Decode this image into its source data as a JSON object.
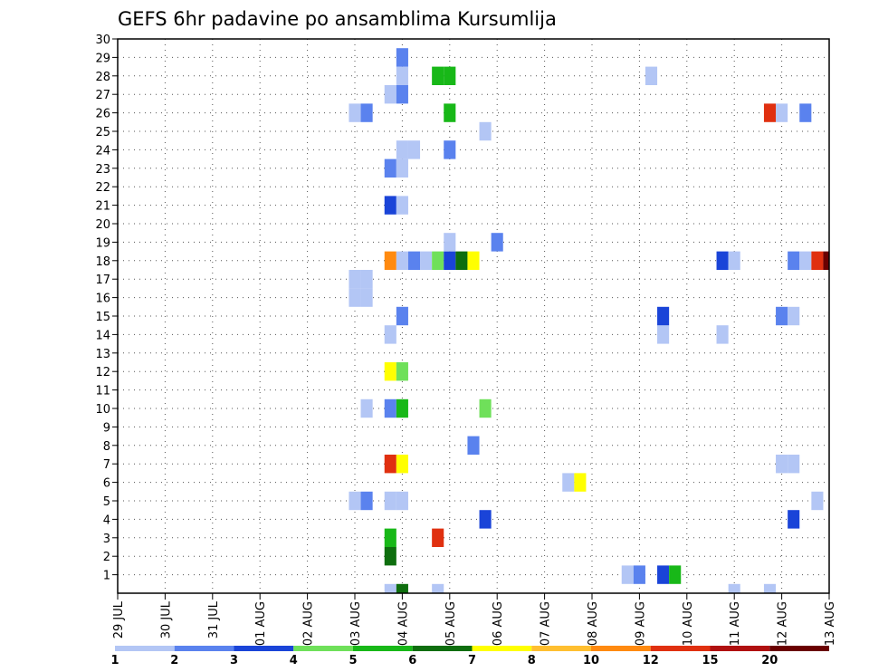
{
  "chart_data": {
    "type": "heatmap",
    "title": "GEFS 6hr padavine po ansamblima Kursumlija",
    "xlabel": "",
    "ylabel": "",
    "x_tick_labels": [
      "29 JUL",
      "30 JUL",
      "31 JUL",
      "01 AUG",
      "02 AUG",
      "03 AUG",
      "04 AUG",
      "05 AUG",
      "06 AUG",
      "07 AUG",
      "08 AUG",
      "09 AUG",
      "10 AUG",
      "11 AUG",
      "12 AUG",
      "13 AUG"
    ],
    "y_tick_labels": [
      "1",
      "2",
      "3",
      "4",
      "5",
      "6",
      "7",
      "8",
      "9",
      "10",
      "11",
      "12",
      "13",
      "14",
      "15",
      "16",
      "17",
      "18",
      "19",
      "20",
      "21",
      "22",
      "23",
      "24",
      "25",
      "26",
      "27",
      "28",
      "29",
      "30"
    ],
    "xlim": [
      0,
      60
    ],
    "ylim": [
      0,
      30
    ],
    "grid": true,
    "colorbar": {
      "placement": "bottom",
      "labels": [
        "1",
        "2",
        "3",
        "4",
        "5",
        "6",
        "7",
        "8",
        "10",
        "12",
        "15",
        "20"
      ],
      "colors": [
        "#b3c6f5",
        "#5a82ee",
        "#1a44d8",
        "#6fe05a",
        "#18b818",
        "#0e6e0e",
        "#ffff00",
        "#ffbf30",
        "#ff8a10",
        "#e03010",
        "#b01010",
        "#6a0000"
      ]
    },
    "cells": [
      {
        "member": 1,
        "step": 43,
        "value": 1.5
      },
      {
        "member": 1,
        "step": 44,
        "value": 2.5
      },
      {
        "member": 1,
        "step": 46,
        "value": 3.5
      },
      {
        "member": 1,
        "step": 47,
        "value": 5.5
      },
      {
        "member": 2,
        "step": 23,
        "value": 6.5
      },
      {
        "member": 3,
        "step": 23,
        "value": 5.5
      },
      {
        "member": 3,
        "step": 27,
        "value": 12
      },
      {
        "member": 4,
        "step": 31,
        "value": 3.5
      },
      {
        "member": 4,
        "step": 57,
        "value": 3.5
      },
      {
        "member": 5,
        "step": 20,
        "value": 1.5
      },
      {
        "member": 5,
        "step": 21,
        "value": 2.5
      },
      {
        "member": 5,
        "step": 23,
        "value": 1.5
      },
      {
        "member": 5,
        "step": 24,
        "value": 1.5
      },
      {
        "member": 5,
        "step": 59,
        "value": 1.5
      },
      {
        "member": 6,
        "step": 38,
        "value": 1.5
      },
      {
        "member": 6,
        "step": 39,
        "value": 7.5
      },
      {
        "member": 7,
        "step": 23,
        "value": 13
      },
      {
        "member": 7,
        "step": 24,
        "value": 7.5
      },
      {
        "member": 7,
        "step": 56,
        "value": 1.5
      },
      {
        "member": 7,
        "step": 57,
        "value": 1.5
      },
      {
        "member": 8,
        "step": 30,
        "value": 2.5
      },
      {
        "member": 10,
        "step": 21,
        "value": 1.5
      },
      {
        "member": 10,
        "step": 23,
        "value": 2.5
      },
      {
        "member": 10,
        "step": 24,
        "value": 5.5
      },
      {
        "member": 10,
        "step": 31,
        "value": 4.5
      },
      {
        "member": 12,
        "step": 23,
        "value": 7.5
      },
      {
        "member": 12,
        "step": 24,
        "value": 4.5
      },
      {
        "member": 14,
        "step": 23,
        "value": 1.5
      },
      {
        "member": 14,
        "step": 46,
        "value": 1.5
      },
      {
        "member": 14,
        "step": 51,
        "value": 1.5
      },
      {
        "member": 15,
        "step": 24,
        "value": 2.5
      },
      {
        "member": 15,
        "step": 46,
        "value": 3.5
      },
      {
        "member": 15,
        "step": 56,
        "value": 2.5
      },
      {
        "member": 15,
        "step": 57,
        "value": 1.5
      },
      {
        "member": 16,
        "step": 20,
        "value": 1.5
      },
      {
        "member": 16,
        "step": 21,
        "value": 1.5
      },
      {
        "member": 17,
        "step": 20,
        "value": 1.5
      },
      {
        "member": 17,
        "step": 21,
        "value": 1.5
      },
      {
        "member": 18,
        "step": 23,
        "value": 11
      },
      {
        "member": 18,
        "step": 24,
        "value": 1.5
      },
      {
        "member": 18,
        "step": 25,
        "value": 2.5
      },
      {
        "member": 18,
        "step": 26,
        "value": 1.5
      },
      {
        "member": 18,
        "step": 27,
        "value": 4.5
      },
      {
        "member": 18,
        "step": 28,
        "value": 3.5
      },
      {
        "member": 18,
        "step": 29,
        "value": 6.5
      },
      {
        "member": 18,
        "step": 30,
        "value": 7.5
      },
      {
        "member": 18,
        "step": 51,
        "value": 3.5
      },
      {
        "member": 18,
        "step": 52,
        "value": 1.5
      },
      {
        "member": 18,
        "step": 57,
        "value": 2.5
      },
      {
        "member": 18,
        "step": 58,
        "value": 1.5
      },
      {
        "member": 18,
        "step": 59,
        "value": 13
      },
      {
        "member": 18,
        "step": 60,
        "value": 21
      },
      {
        "member": 19,
        "step": 28,
        "value": 1.5
      },
      {
        "member": 19,
        "step": 32,
        "value": 2.5
      },
      {
        "member": 21,
        "step": 23,
        "value": 3.5
      },
      {
        "member": 21,
        "step": 24,
        "value": 1.5
      },
      {
        "member": 23,
        "step": 23,
        "value": 2.5
      },
      {
        "member": 23,
        "step": 24,
        "value": 1.5
      },
      {
        "member": 24,
        "step": 24,
        "value": 1.5
      },
      {
        "member": 24,
        "step": 25,
        "value": 1.5
      },
      {
        "member": 24,
        "step": 28,
        "value": 2.5
      },
      {
        "member": 25,
        "step": 31,
        "value": 1.5
      },
      {
        "member": 26,
        "step": 20,
        "value": 1.5
      },
      {
        "member": 26,
        "step": 21,
        "value": 2.5
      },
      {
        "member": 26,
        "step": 28,
        "value": 5.5
      },
      {
        "member": 26,
        "step": 55,
        "value": 13
      },
      {
        "member": 26,
        "step": 56,
        "value": 1.5
      },
      {
        "member": 26,
        "step": 58,
        "value": 2.5
      },
      {
        "member": 27,
        "step": 23,
        "value": 1.5
      },
      {
        "member": 27,
        "step": 24,
        "value": 2.5
      },
      {
        "member": 28,
        "step": 24,
        "value": 1.5
      },
      {
        "member": 28,
        "step": 27,
        "value": 5.5
      },
      {
        "member": 28,
        "step": 28,
        "value": 5.5
      },
      {
        "member": 28,
        "step": 45,
        "value": 1.5
      },
      {
        "member": 29,
        "step": 24,
        "value": 2.5
      },
      {
        "member": 0,
        "step": 23,
        "value": 1.5
      },
      {
        "member": 0,
        "step": 24,
        "value": 6.5
      },
      {
        "member": 0,
        "step": 27,
        "value": 1.5
      },
      {
        "member": 0,
        "step": 52,
        "value": 1.5
      },
      {
        "member": 0,
        "step": 55,
        "value": 1.5
      }
    ]
  }
}
